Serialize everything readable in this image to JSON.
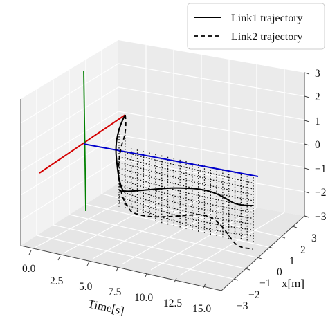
{
  "chart_data": {
    "type": "line",
    "subtype": "3d",
    "title": "",
    "xlabel": "Time[s]",
    "ylabel": "x[m]",
    "zlabel": "",
    "x_ticks": [
      "0.0",
      "2.5",
      "5.0",
      "7.5",
      "10.0",
      "12.5",
      "15.0"
    ],
    "y_ticks": [
      "−3",
      "−2",
      "−1",
      "0",
      "1",
      "2",
      "3"
    ],
    "z_ticks": [
      "−3",
      "−2",
      "−1",
      "0",
      "1",
      "2",
      "3"
    ],
    "xlim": [
      0,
      15
    ],
    "ylim": [
      -3,
      3
    ],
    "zlim": [
      -3,
      3
    ],
    "grid": true,
    "legend": {
      "location": "upper-right",
      "entries": [
        "Link1 trajectory",
        "Link2 trajectory"
      ]
    },
    "series": [
      {
        "name": "Link1 trajectory",
        "linestyle": "solid",
        "color": "#000000",
        "t": [
          5.0,
          5.3,
          5.7,
          6.2,
          6.6,
          7.0,
          7.4,
          8.0,
          9.0,
          10.0,
          11.0,
          12.0,
          13.0,
          14.0,
          15.0
        ],
        "y": [
          -0.1,
          0.1,
          0.2,
          0.25,
          0.3,
          0.3,
          0.35,
          0.4,
          0.5,
          0.6,
          0.7,
          0.8,
          0.9,
          1.0,
          1.1
        ],
        "z": [
          2.4,
          1.8,
          0.4,
          -1.0,
          -2.2,
          -2.8,
          -2.9,
          -2.8,
          -2.6,
          -2.6,
          -2.55,
          -2.3,
          -2.3,
          -2.6,
          -2.7
        ]
      },
      {
        "name": "Link2 trajectory",
        "linestyle": "dashed",
        "color": "#000000",
        "t": [
          5.0,
          5.4,
          5.8,
          6.2,
          6.6,
          7.0,
          7.4,
          8.0,
          9.0,
          10.0,
          11.0,
          12.0,
          13.0,
          14.0,
          15.0
        ],
        "y": [
          0.3,
          0.4,
          0.3,
          0.2,
          0.2,
          0.1,
          0.0,
          -0.3,
          -0.5,
          -0.4,
          -0.3,
          -0.1,
          0.0,
          -0.3,
          -0.5
        ],
        "z": [
          3.0,
          2.4,
          1.0,
          -0.5,
          -1.6,
          -2.4,
          -2.9,
          -3.4,
          -3.6,
          -3.6,
          -3.5,
          -3.3,
          -3.2,
          -3.6,
          -3.9
        ]
      }
    ],
    "links_grid": {
      "description": "dotted lines joining origin link to link1/link2 positions over time",
      "color": "#000000",
      "linestyle": "dotted"
    },
    "reference_axes": [
      {
        "name": "x-axis",
        "color": "#d40000"
      },
      {
        "name": "y-axis",
        "color": "#0000cc"
      },
      {
        "name": "z-axis",
        "color": "#008000"
      }
    ]
  }
}
